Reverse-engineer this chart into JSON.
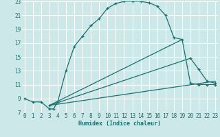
{
  "xlabel": "Humidex (Indice chaleur)",
  "bg_color": "#cce8e8",
  "grid_color": "#ffffff",
  "line_color": "#1a7070",
  "xmin": 0,
  "xmax": 23,
  "ymin": 7,
  "ymax": 23,
  "line1_x": [
    0,
    1,
    2,
    3,
    3.5,
    4,
    5,
    6,
    7,
    8,
    9,
    10,
    11,
    12,
    13,
    14,
    15,
    16,
    17,
    18,
    19,
    20,
    21,
    22,
    23
  ],
  "line1_y": [
    9.0,
    8.5,
    8.5,
    7.5,
    7.5,
    8.5,
    13.0,
    16.5,
    18.0,
    19.5,
    20.5,
    22.0,
    22.7,
    23.0,
    23.0,
    23.0,
    22.8,
    22.3,
    21.0,
    17.8,
    17.5,
    11.2,
    11.0,
    11.0,
    11.0
  ],
  "line2_x": [
    3,
    19
  ],
  "line2_y": [
    8.0,
    17.5
  ],
  "line3_x": [
    3,
    20,
    21,
    22,
    23
  ],
  "line3_y": [
    8.0,
    14.8,
    13.2,
    11.5,
    11.2
  ],
  "line4_x": [
    3,
    23
  ],
  "line4_y": [
    8.0,
    11.5
  ],
  "xticks": [
    0,
    1,
    2,
    3,
    4,
    5,
    6,
    7,
    8,
    9,
    10,
    11,
    12,
    13,
    14,
    15,
    16,
    17,
    18,
    19,
    20,
    21,
    22,
    23
  ],
  "yticks": [
    7,
    9,
    11,
    13,
    15,
    17,
    19,
    21,
    23
  ],
  "tick_fontsize": 5.5,
  "xlabel_fontsize": 6
}
